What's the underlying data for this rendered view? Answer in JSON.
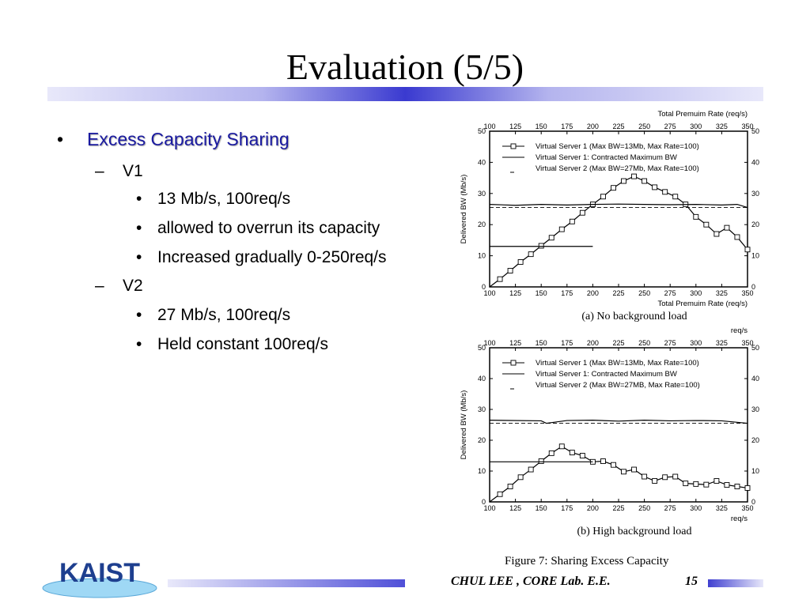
{
  "slide": {
    "title": "Evaluation (5/5)",
    "bullets": [
      {
        "level": 1,
        "text": "Excess Capacity Sharing"
      },
      {
        "level": 2,
        "text": "V1"
      },
      {
        "level": 3,
        "text": "13 Mb/s, 100req/s"
      },
      {
        "level": 3,
        "text": "allowed to overrun its capacity"
      },
      {
        "level": 3,
        "text": "Increased gradually 0-250req/s"
      },
      {
        "level": 2,
        "text": "V2"
      },
      {
        "level": 3,
        "text": "27 Mb/s, 100req/s"
      },
      {
        "level": 3,
        "text": "Held constant 100req/s"
      }
    ],
    "markers": {
      "level1": "•",
      "level2": "–",
      "level3": "•"
    },
    "figure_caption": "Figure 7: Sharing Excess Capacity",
    "footer": "CHUL LEE  ,  CORE Lab. E.E.",
    "page_number": "15",
    "logo_text": "KAIST",
    "colors": {
      "accent": "#3a3ad0",
      "heading": "#1a1aa0",
      "logo": "#1e3f8f"
    }
  },
  "chart_data": [
    {
      "type": "line",
      "caption": "(a) No background load",
      "top_axis_label": "Total Premuim Rate (req/s)",
      "bottom_axis_label": "Total Premuim Rate (req/s)",
      "ylabel": "Delivered BW (Mb/s)",
      "xlim": [
        100,
        350
      ],
      "ylim": [
        0,
        50
      ],
      "x_ticks": [
        100,
        125,
        150,
        175,
        200,
        225,
        250,
        275,
        300,
        325,
        350
      ],
      "y_ticks": [
        0,
        10,
        20,
        30,
        40,
        50
      ],
      "legend_position": "top-left",
      "series": [
        {
          "name": "Virtual Server 1 (Max BW=13Mb, Max Rate=100)",
          "style": "solid-square-markers",
          "x": [
            100,
            110,
            120,
            130,
            140,
            150,
            160,
            170,
            180,
            190,
            200,
            210,
            220,
            230,
            240,
            250,
            260,
            270,
            280,
            290,
            300,
            310,
            320,
            330,
            340,
            350
          ],
          "y": [
            0,
            2.5,
            5.2,
            8,
            10.5,
            13.2,
            15.8,
            18.5,
            21,
            23.8,
            26.5,
            29,
            31.8,
            34,
            35.5,
            34,
            32,
            30.5,
            29,
            26.5,
            22.5,
            20,
            17,
            19,
            16,
            12
          ]
        },
        {
          "name": "Virtual Server 1: Contracted Maximum BW",
          "style": "solid",
          "x": [
            100,
            200
          ],
          "y": [
            13,
            13
          ]
        },
        {
          "name": "Virtual Server 2 (Max BW=27Mb, Max Rate=100)",
          "style": "dashed",
          "x": [
            100,
            150,
            200,
            250,
            300,
            350
          ],
          "y": [
            25.5,
            25.5,
            25.5,
            25.5,
            25.5,
            25.5
          ]
        },
        {
          "name": "",
          "style": "solid",
          "x": [
            100,
            125,
            150,
            175,
            200,
            225,
            250,
            275,
            300,
            325,
            340,
            350
          ],
          "y": [
            26.5,
            26.2,
            26.5,
            26.3,
            26.5,
            26.6,
            26.5,
            26.4,
            26.5,
            26.3,
            26.5,
            25.5
          ]
        }
      ]
    },
    {
      "type": "line",
      "caption": "(b) High background load",
      "top_axis_label": "req/s",
      "bottom_axis_label": "req/s",
      "ylabel": "Delivered BW (Mb/s)",
      "xlim": [
        100,
        350
      ],
      "ylim": [
        0,
        50
      ],
      "x_ticks": [
        100,
        125,
        150,
        175,
        200,
        225,
        250,
        275,
        300,
        325,
        350
      ],
      "y_ticks": [
        0,
        10,
        20,
        30,
        40,
        50
      ],
      "legend_position": "top-left",
      "series": [
        {
          "name": "Virtual Server 1 (Max BW=13Mb, Max Rate=100)",
          "style": "solid-square-markers",
          "x": [
            100,
            110,
            120,
            130,
            140,
            150,
            160,
            170,
            180,
            190,
            200,
            210,
            220,
            230,
            240,
            250,
            260,
            270,
            280,
            290,
            300,
            310,
            320,
            330,
            340,
            350
          ],
          "y": [
            0,
            2.5,
            5,
            8,
            10.5,
            13.2,
            15.8,
            18,
            16,
            15,
            13,
            13.2,
            12,
            9.8,
            10.5,
            8.2,
            6.8,
            8,
            8.2,
            6,
            5.8,
            5.6,
            6.8,
            5.5,
            5,
            4.5
          ]
        },
        {
          "name": "Virtual Server 1: Contracted Maximum BW",
          "style": "solid",
          "x": [
            100,
            200
          ],
          "y": [
            13,
            13
          ]
        },
        {
          "name": "Virtual Server 2 (Max BW=27MB, Max Rate=100)",
          "style": "dashed",
          "x": [
            100,
            150,
            200,
            250,
            300,
            350
          ],
          "y": [
            25.5,
            25.5,
            25.5,
            25.5,
            25.5,
            25.5
          ]
        },
        {
          "name": "",
          "style": "solid",
          "x": [
            100,
            150,
            155,
            175,
            200,
            225,
            250,
            275,
            300,
            325,
            350
          ],
          "y": [
            26.5,
            26.3,
            25.5,
            26.4,
            26.5,
            26.2,
            26.5,
            26.3,
            26.4,
            26.3,
            25.5
          ]
        }
      ]
    }
  ]
}
